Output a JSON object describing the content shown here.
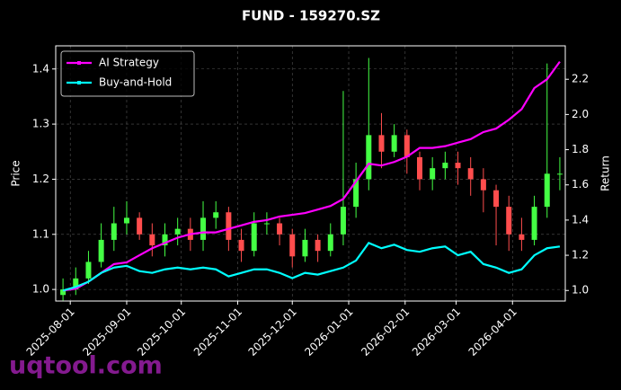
{
  "chart_data": {
    "type": "candlestick",
    "title": "FUND - 159270.SZ",
    "y_label": "Price",
    "y2_label": "Return",
    "watermark": "uqtool.com",
    "x": [
      "2025-07-28",
      "2025-08-04",
      "2025-08-11",
      "2025-08-18",
      "2025-08-25",
      "2025-09-01",
      "2025-09-08",
      "2025-09-15",
      "2025-09-22",
      "2025-09-29",
      "2025-10-06",
      "2025-10-13",
      "2025-10-20",
      "2025-10-27",
      "2025-11-03",
      "2025-11-10",
      "2025-11-17",
      "2025-11-24",
      "2025-12-01",
      "2025-12-08",
      "2025-12-15",
      "2025-12-22",
      "2025-12-29",
      "2026-01-05",
      "2026-01-12",
      "2026-01-19",
      "2026-01-26",
      "2026-02-02",
      "2026-02-09",
      "2026-02-16",
      "2026-02-23",
      "2026-03-02",
      "2026-03-09",
      "2026-03-16",
      "2026-03-23",
      "2026-03-30",
      "2026-04-06",
      "2026-04-13",
      "2026-04-20",
      "2026-04-27"
    ],
    "open": [
      0.99,
      1.0,
      1.02,
      1.05,
      1.09,
      1.12,
      1.13,
      1.1,
      1.08,
      1.1,
      1.11,
      1.09,
      1.13,
      1.14,
      1.09,
      1.07,
      1.12,
      1.12,
      1.1,
      1.06,
      1.09,
      1.07,
      1.1,
      1.15,
      1.2,
      1.28,
      1.25,
      1.28,
      1.24,
      1.2,
      1.22,
      1.23,
      1.22,
      1.2,
      1.18,
      1.15,
      1.1,
      1.09,
      1.15,
      1.21
    ],
    "high": [
      1.02,
      1.04,
      1.07,
      1.12,
      1.15,
      1.16,
      1.14,
      1.12,
      1.12,
      1.13,
      1.13,
      1.16,
      1.16,
      1.15,
      1.11,
      1.14,
      1.14,
      1.13,
      1.11,
      1.11,
      1.1,
      1.12,
      1.36,
      1.23,
      1.42,
      1.32,
      1.3,
      1.29,
      1.25,
      1.24,
      1.25,
      1.25,
      1.24,
      1.22,
      1.19,
      1.17,
      1.13,
      1.17,
      1.41,
      1.24
    ],
    "low": [
      0.98,
      0.99,
      1.01,
      1.04,
      1.07,
      1.1,
      1.09,
      1.06,
      1.06,
      1.08,
      1.07,
      1.07,
      1.11,
      1.07,
      1.05,
      1.06,
      1.1,
      1.08,
      1.04,
      1.05,
      1.05,
      1.06,
      1.08,
      1.13,
      1.18,
      1.22,
      1.24,
      1.21,
      1.18,
      1.18,
      1.2,
      1.19,
      1.17,
      1.14,
      1.08,
      1.07,
      1.07,
      1.08,
      1.13,
      1.18
    ],
    "close": [
      1.0,
      1.02,
      1.05,
      1.09,
      1.12,
      1.13,
      1.1,
      1.08,
      1.1,
      1.11,
      1.09,
      1.13,
      1.14,
      1.09,
      1.07,
      1.12,
      1.12,
      1.1,
      1.06,
      1.09,
      1.07,
      1.1,
      1.15,
      1.2,
      1.28,
      1.25,
      1.28,
      1.24,
      1.2,
      1.22,
      1.23,
      1.22,
      1.2,
      1.18,
      1.15,
      1.1,
      1.09,
      1.15,
      1.21,
      1.21
    ],
    "up_color": "#44ff44",
    "down_color": "#ff4d4d",
    "series": [
      {
        "name": "AI Strategy",
        "color": "#ff00ff",
        "axis": "y2",
        "values": [
          1.0,
          1.01,
          1.05,
          1.1,
          1.15,
          1.16,
          1.2,
          1.24,
          1.27,
          1.3,
          1.32,
          1.33,
          1.33,
          1.35,
          1.37,
          1.39,
          1.4,
          1.42,
          1.43,
          1.44,
          1.46,
          1.48,
          1.52,
          1.62,
          1.72,
          1.71,
          1.73,
          1.76,
          1.81,
          1.81,
          1.82,
          1.84,
          1.86,
          1.9,
          1.92,
          1.97,
          2.03,
          2.15,
          2.2,
          2.3
        ]
      },
      {
        "name": "Buy-and-Hold",
        "color": "#00ffff",
        "axis": "y2",
        "values": [
          1.0,
          1.02,
          1.05,
          1.1,
          1.13,
          1.14,
          1.11,
          1.1,
          1.12,
          1.13,
          1.12,
          1.13,
          1.12,
          1.08,
          1.1,
          1.12,
          1.12,
          1.1,
          1.07,
          1.1,
          1.09,
          1.11,
          1.13,
          1.17,
          1.27,
          1.24,
          1.26,
          1.23,
          1.22,
          1.24,
          1.25,
          1.2,
          1.22,
          1.15,
          1.13,
          1.1,
          1.12,
          1.2,
          1.24,
          1.25
        ]
      }
    ],
    "xlim": [
      "2025-07-24",
      "2026-04-30"
    ],
    "xticks": [
      "2025-08-01",
      "2025-09-01",
      "2025-10-01",
      "2025-11-01",
      "2025-12-01",
      "2026-01-01",
      "2026-02-01",
      "2026-03-01",
      "2026-04-01"
    ],
    "ylim": [
      0.979,
      1.442
    ],
    "yticks": [
      {
        "value": 1.0,
        "label": "1.0"
      },
      1.1,
      1.2,
      1.3,
      1.4
    ],
    "y2lim": [
      0.94,
      2.39
    ],
    "y2ticks": [
      {
        "value": 1.0,
        "label": "1.0"
      },
      1.2,
      1.4,
      1.6,
      1.8,
      {
        "value": 2.0,
        "label": "2.0"
      },
      2.2
    ],
    "grid": true,
    "legend": "upper left"
  }
}
